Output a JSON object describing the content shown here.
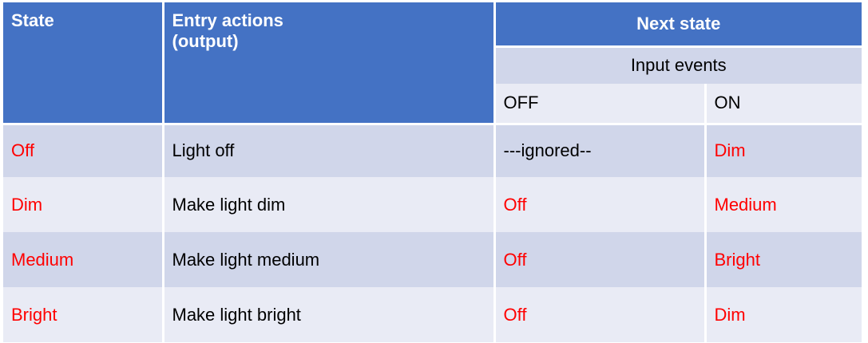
{
  "header": {
    "state": "State",
    "entry_line1": "Entry actions",
    "entry_line2": "(output)",
    "next_state": "Next state",
    "input_events": "Input events",
    "col_off": "OFF",
    "col_on": "ON"
  },
  "rows": [
    {
      "state": "Off",
      "entry": "Light off",
      "off": "---ignored--",
      "on": "Dim"
    },
    {
      "state": "Dim",
      "entry": "Make light dim",
      "off": "Off",
      "on": "Medium"
    },
    {
      "state": "Medium",
      "entry": "Make light medium",
      "off": "Off",
      "on": "Bright"
    },
    {
      "state": "Bright",
      "entry": "Make light bright",
      "off": "Off",
      "on": "Dim"
    }
  ],
  "colors": {
    "header_bg": "#4472c4",
    "row_dark": "#d0d6ea",
    "row_light": "#e9ebf5",
    "state_red": "#ff0000"
  }
}
